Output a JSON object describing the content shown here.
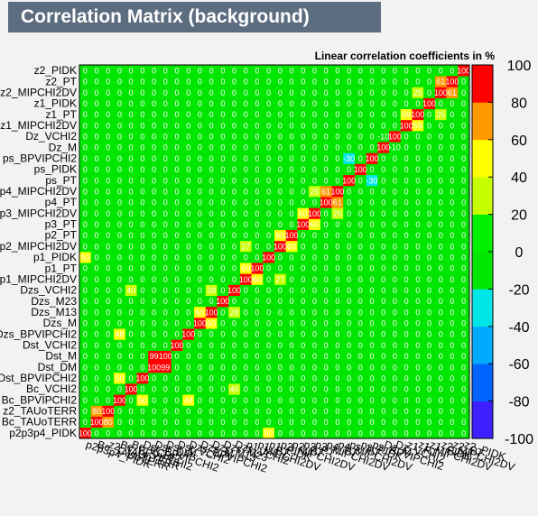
{
  "chart_data": {
    "type": "heatmap",
    "title": "Correlation Matrix (background)",
    "subtitle": "Linear correlation coefficients in %",
    "variables": [
      "p2p3p4_PIDK",
      "Bc_TAUoTERR",
      "z2_TAUoTERR",
      "Bc_BPVIPCHI2",
      "Bc_VCHI2",
      "Dst_BPVIPCHI2",
      "Dst_DM",
      "Dst_M",
      "Dst_VCHI2",
      "Dzs_BPVIPCHI2",
      "Dzs_M",
      "Dzs_M13",
      "Dzs_M23",
      "Dzs_VCHI2",
      "p1_MIPCHI2DV",
      "p1_PT",
      "p1_PIDK",
      "p2_MIPCHI2DV",
      "p2_PT",
      "p3_PT",
      "p3_MIPCHI2DV",
      "p4_PT",
      "p4_MIPCHI2DV",
      "ps_PT",
      "ps_PIDK",
      "ps_BPVIPCHI2",
      "Dz_M",
      "Dz_VCHI2",
      "z1_PT",
      "z1_MIPCHI2DV",
      "z1_PIDK",
      "z2_MIPCHI2DV",
      "z2_PT",
      "z2_PIDK"
    ],
    "y_labels_shown": [
      "z2_PIDK",
      "z2_PT",
      "z2_MIPCHI2DV",
      "z1_PIDK",
      "z1_PT",
      "z1_MIPCHI2DV",
      "Dz_VCHI2",
      "Dz_M",
      "ps_BPVIPCHI2",
      "ps_PIDK",
      "ps_PT",
      "p4_MIPCHI2DV",
      "p4_PT",
      "p3_MIPCHI2DV",
      "p3_PT",
      "p2_PT",
      "p2_MIPCHI2DV",
      "p1_PIDK",
      "p1_PT",
      "p1_MIPCHI2DV",
      "Dzs_VCHI2",
      "Dzs_M23",
      "Dzs_M13",
      "Dzs_M",
      "Dzs_BPVIPCHI2",
      "Dst_VCHI2",
      "Dst_M",
      "Dst_DM",
      "Dst_BPVIPCHI2",
      "Bc_VCHI2",
      "Bc_BPVIPCHI2",
      "z2_TAUoTERR",
      "Bc_TAUoTERR",
      "p2p3p4_PIDK"
    ],
    "x_labels_shown": [
      "p2p3p4_PIDK",
      "Bc_TAUoTERR",
      "z2_TAUoTERR",
      "Bc_BPVIPCHI2",
      "Bc_VCHI2",
      "Dst_BPVIPCHI2",
      "Dst_DM",
      "Dst_M",
      "Dst_VCHI2",
      "Dzs_BPVIPCHI2",
      "Dzs_M",
      "Dzs_M13",
      "Dzs_M23",
      "Dzs_VCHI2",
      "p1_MIPCHI2DV",
      "p1_PT",
      "p1_PIDK",
      "p2_MIPCHI2DV",
      "p2_PT",
      "p3_PT",
      "p3_MIPCHI2DV",
      "p4_PT",
      "p4_MIPCHI2DV",
      "ps_PT",
      "ps_PIDK",
      "ps_BPVIPCHI2",
      "Dz_M",
      "Dz_VCHI2",
      "z1_PT",
      "z1_MIPCHI2DV",
      "z1_PIDK",
      "z2_MIPCHI2DV",
      "z2_PT",
      "z2_PIDK"
    ],
    "value_range": [
      -100,
      100
    ],
    "colorbar_ticks": [
      100,
      80,
      60,
      40,
      20,
      0,
      -20,
      -40,
      -60,
      -80,
      -100
    ],
    "strong_correlations": [
      {
        "a": "Bc_TAUoTERR",
        "b": "z2_TAUoTERR",
        "value": 80
      },
      {
        "a": "Dst_DM",
        "b": "Dst_M",
        "value": 99
      },
      {
        "a": "Dzs_M",
        "b": "Dzs_M13",
        "value": 60
      },
      {
        "a": "p1_PT",
        "b": "p1_MIPCHI2DV",
        "value": 60
      },
      {
        "a": "p2_PT",
        "b": "p2_MIPCHI2DV",
        "value": 60
      },
      {
        "a": "p3_PT",
        "b": "p3_MIPCHI2DV",
        "value": 60
      },
      {
        "a": "p4_PT",
        "b": "p4_MIPCHI2DV",
        "value": 61
      },
      {
        "a": "ps_PT",
        "b": "ps_BPVIPCHI2",
        "value": -30
      },
      {
        "a": "z1_PT",
        "b": "z1_MIPCHI2DV",
        "value": 59
      },
      {
        "a": "z2_PT",
        "b": "z2_MIPCHI2DV",
        "value": 61
      },
      {
        "a": "p1_PIDK",
        "b": "p2p3p4_PIDK",
        "value": 50
      },
      {
        "a": "Dst_BPVIPCHI2",
        "b": "Bc_BPVIPCHI2",
        "value": 50
      },
      {
        "a": "Dzs_BPVIPCHI2",
        "b": "Bc_BPVIPCHI2",
        "value": 48
      },
      {
        "a": "Dzs_VCHI2",
        "b": "Bc_VCHI2",
        "value": 40
      },
      {
        "a": "Dzs_VCHI2",
        "b": "Dzs_M13",
        "value": 28
      },
      {
        "a": "p1_MIPCHI2DV",
        "b": "p2_MIPCHI2DV",
        "value": 27
      },
      {
        "a": "p3_MIPCHI2DV",
        "b": "p4_MIPCHI2DV",
        "value": 25
      },
      {
        "a": "z1_MIPCHI2DV",
        "b": "z2_MIPCHI2DV",
        "value": 25
      },
      {
        "a": "Dz_VCHI2",
        "b": "Dz_M",
        "value": -10
      }
    ]
  }
}
